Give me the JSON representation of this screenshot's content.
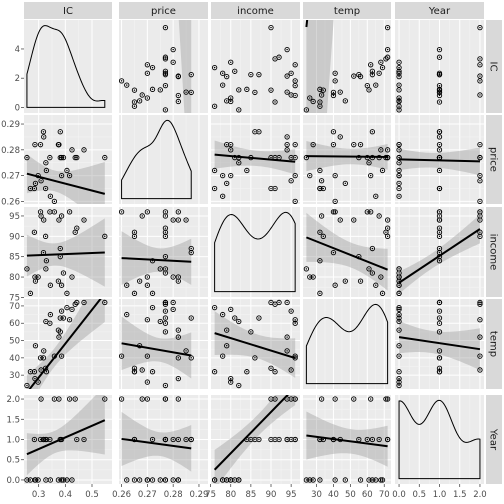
{
  "chart_data": {
    "type": "scatter",
    "plot_kind": "pairs-matrix",
    "variables": [
      "IC",
      "price",
      "income",
      "temp",
      "Year"
    ],
    "x_ticks": {
      "IC": [
        0.3,
        0.4,
        0.5
      ],
      "price": [
        0.26,
        0.27,
        0.28,
        0.29
      ],
      "income": [
        75,
        80,
        85,
        90,
        95
      ],
      "temp": [
        30,
        40,
        50,
        60,
        70
      ],
      "Year": [
        0.0,
        0.5,
        1.0,
        1.5,
        2.0
      ]
    },
    "x_tick_labels": {
      "IC": [
        "0.3",
        "0.4",
        "0.5"
      ],
      "price": [
        "0.26",
        "0.27",
        "0.28",
        "0.29"
      ],
      "income": [
        "75",
        "80",
        "85",
        "90",
        "95"
      ],
      "temp": [
        "30",
        "40",
        "50",
        "60",
        "70"
      ],
      "Year": [
        "0.0",
        "0.5",
        "1.0",
        "1.5",
        "2.0"
      ]
    },
    "y_ticks": {
      "IC": [
        0,
        2,
        4
      ],
      "price": [
        0.26,
        0.27,
        0.28,
        0.29
      ],
      "income": [
        75,
        80,
        85,
        90,
        95
      ],
      "temp": [
        30,
        40,
        50,
        60,
        70
      ],
      "Year": [
        0.0,
        0.5,
        1.0,
        1.5,
        2.0
      ]
    },
    "y_tick_labels": {
      "IC": [
        "0",
        "2",
        "4"
      ],
      "price": [
        "0.26",
        "0.27",
        "0.28",
        "0.29"
      ],
      "income": [
        "75",
        "80",
        "85",
        "90",
        "95"
      ],
      "temp": [
        "30",
        "40",
        "50",
        "60",
        "70"
      ],
      "Year": [
        "0.0",
        "0.5",
        "1.0",
        "1.5",
        "2.0"
      ]
    },
    "ranges": {
      "IC": [
        0.245,
        0.575
      ],
      "price": [
        0.259,
        0.2935
      ],
      "income": [
        75.1,
        97.2
      ],
      "temp": [
        22,
        74
      ],
      "Year": [
        -0.1,
        2.1
      ]
    },
    "observations": [
      {
        "IC": 0.386,
        "price": 0.27,
        "income": 78,
        "temp": 41,
        "Year": 0
      },
      {
        "IC": 0.374,
        "price": 0.282,
        "income": 79,
        "temp": 56,
        "Year": 0
      },
      {
        "IC": 0.393,
        "price": 0.277,
        "income": 81,
        "temp": 63,
        "Year": 0
      },
      {
        "IC": 0.425,
        "price": 0.28,
        "income": 80,
        "temp": 68,
        "Year": 0
      },
      {
        "IC": 0.406,
        "price": 0.272,
        "income": 76,
        "temp": 69,
        "Year": 0
      },
      {
        "IC": 0.344,
        "price": 0.262,
        "income": 78,
        "temp": 65,
        "Year": 0
      },
      {
        "IC": 0.327,
        "price": 0.275,
        "income": 82,
        "temp": 61,
        "Year": 0
      },
      {
        "IC": 0.288,
        "price": 0.267,
        "income": 79,
        "temp": 47,
        "Year": 0
      },
      {
        "IC": 0.269,
        "price": 0.265,
        "income": 76,
        "temp": 32,
        "Year": 0
      },
      {
        "IC": 0.256,
        "price": 0.277,
        "income": 82,
        "temp": 24,
        "Year": 0
      },
      {
        "IC": 0.286,
        "price": 0.282,
        "income": 80,
        "temp": 28,
        "Year": 0
      },
      {
        "IC": 0.298,
        "price": 0.27,
        "income": 80,
        "temp": 26,
        "Year": 0
      },
      {
        "IC": 0.329,
        "price": 0.272,
        "income": 84,
        "temp": 32,
        "Year": 1
      },
      {
        "IC": 0.318,
        "price": 0.287,
        "income": 86,
        "temp": 40,
        "Year": 1
      },
      {
        "IC": 0.381,
        "price": 0.277,
        "income": 85,
        "temp": 55,
        "Year": 1
      },
      {
        "IC": 0.381,
        "price": 0.287,
        "income": 87,
        "temp": 63,
        "Year": 1
      },
      {
        "IC": 0.47,
        "price": 0.28,
        "income": 94,
        "temp": 72,
        "Year": 1
      },
      {
        "IC": 0.443,
        "price": 0.277,
        "income": 92,
        "temp": 72,
        "Year": 1
      },
      {
        "IC": 0.386,
        "price": 0.277,
        "income": 95,
        "temp": 67,
        "Year": 1
      },
      {
        "IC": 0.342,
        "price": 0.277,
        "income": 96,
        "temp": 60,
        "Year": 1
      },
      {
        "IC": 0.319,
        "price": 0.285,
        "income": 94,
        "temp": 44,
        "Year": 1
      },
      {
        "IC": 0.307,
        "price": 0.282,
        "income": 96,
        "temp": 40,
        "Year": 1
      },
      {
        "IC": 0.284,
        "price": 0.265,
        "income": 91,
        "temp": 32,
        "Year": 1
      },
      {
        "IC": 0.326,
        "price": 0.265,
        "income": 90,
        "temp": 34,
        "Year": 1
      },
      {
        "IC": 0.309,
        "price": 0.268,
        "income": 95,
        "temp": 33,
        "Year": 2
      },
      {
        "IC": 0.359,
        "price": 0.26,
        "income": 96,
        "temp": 41,
        "Year": 2
      },
      {
        "IC": 0.376,
        "price": 0.282,
        "income": 94,
        "temp": 52,
        "Year": 2
      },
      {
        "IC": 0.416,
        "price": 0.27,
        "income": 96,
        "temp": 62,
        "Year": 2
      },
      {
        "IC": 0.437,
        "price": 0.277,
        "income": 91,
        "temp": 71,
        "Year": 2
      },
      {
        "IC": 0.548,
        "price": 0.277,
        "income": 90,
        "temp": 72,
        "Year": 2
      }
    ],
    "fit_lines": {
      "price~IC": [
        0.2776,
        -0.0268
      ],
      "income~IC": [
        84.6,
        2.6
      ],
      "temp~IC": [
        -30.2,
        196.0
      ],
      "Year~IC": [
        -0.1,
        2.88
      ],
      "IC~price": [
        22.5,
        -74.0
      ],
      "income~price": [
        93.5,
        -34.0
      ],
      "temp~price": [
        116.0,
        -260.0
      ],
      "Year~price": [
        3.25,
        -8.6
      ],
      "IC~income": [
        1.6,
        0.003
      ],
      "price~income": [
        0.2888,
        -0.00014
      ],
      "temp~income": [
        109.0,
        -0.72
      ],
      "Year~income": [
        -7.5,
        0.102
      ],
      "IC~temp": [
        -0.77,
        0.055
      ],
      "price~temp": [
        0.2777,
        -6e-06
      ],
      "income~temp": [
        93.7,
        -0.165
      ],
      "Year~temp": [
        1.23,
        -0.0055
      ],
      "IC~Year": [
        1.55,
        0.45
      ],
      "price~Year": [
        0.2763,
        -0.0004
      ],
      "income~Year": [
        78.6,
        6.6
      ],
      "temp~Year": [
        52.0,
        -3.5
      ]
    }
  }
}
